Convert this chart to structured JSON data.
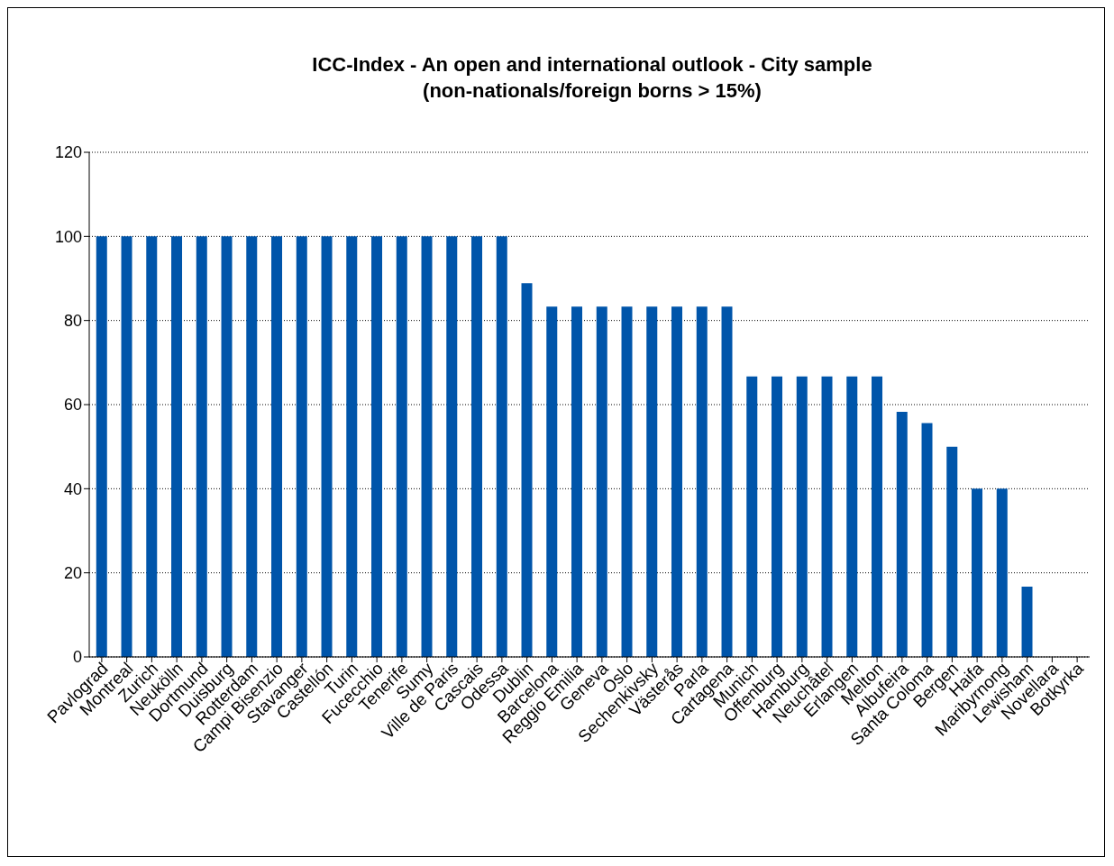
{
  "chart_data": {
    "type": "bar",
    "title": "ICC-Index - An open and international outlook - City sample",
    "subtitle": "(non-nationals/foreign borns > 15%)",
    "categories": [
      "Pavlograd",
      "Montreal",
      "Zurich",
      "Neukölln",
      "Dortmund",
      "Duisburg",
      "Rotterdam",
      "Campi Bisenzio",
      "Stavanger",
      "Castellón",
      "Turin",
      "Fucecchio",
      "Tenerife",
      "Sumy",
      "Ville de Paris",
      "Cascais",
      "Odessa",
      "Dublin",
      "Barcelona",
      "Reggio Emilia",
      "Geneva",
      "Oslo",
      "Sechenkivsky",
      "Västerås",
      "Parla",
      "Cartagena",
      "Munich",
      "Offenburg",
      "Hamburg",
      "Neuchâtel",
      "Erlangen",
      "Melton",
      "Albufeira",
      "Santa Coloma",
      "Bergen",
      "Haifa",
      "Maribyrnong",
      "Lewisham",
      "Novellara",
      "Botkyrka"
    ],
    "values": [
      100,
      100,
      100,
      100,
      100,
      100,
      100,
      100,
      100,
      100,
      100,
      100,
      100,
      100,
      100,
      100,
      100,
      88.9,
      83.3,
      83.3,
      83.3,
      83.3,
      83.3,
      83.3,
      83.3,
      83.3,
      66.7,
      66.7,
      66.7,
      66.7,
      66.7,
      66.7,
      58.3,
      55.6,
      50,
      40,
      40,
      16.7,
      0,
      0
    ],
    "color": "#0055aa",
    "ylim": [
      0,
      120
    ],
    "yticks": [
      0,
      20,
      40,
      60,
      80,
      100,
      120
    ],
    "grid": "y"
  }
}
